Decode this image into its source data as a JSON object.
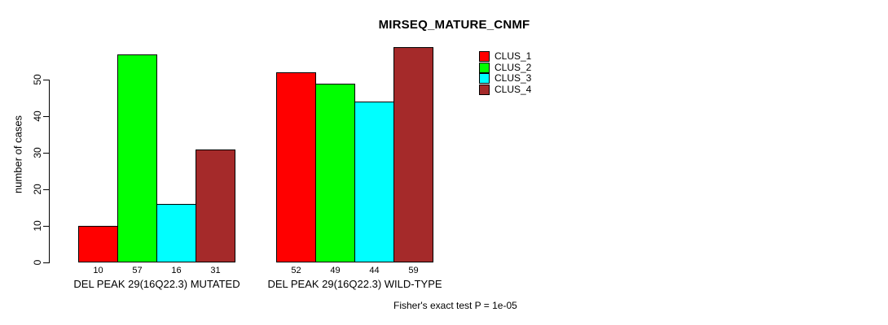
{
  "chart_data": {
    "type": "bar",
    "title": "MIRSEQ_MATURE_CNMF",
    "ylabel": "number of cases",
    "xlabel": "",
    "yticks": [
      0,
      10,
      20,
      30,
      40,
      50
    ],
    "ylim": [
      0,
      59
    ],
    "grid": false,
    "legend_position": "top-right",
    "series": [
      {
        "name": "CLUS_1",
        "color": "#FF0000"
      },
      {
        "name": "CLUS_2",
        "color": "#00FF00"
      },
      {
        "name": "CLUS_3",
        "color": "#00FFFF"
      },
      {
        "name": "CLUS_4",
        "color": "#A52A2A"
      }
    ],
    "groups": [
      {
        "label": "DEL PEAK 29(16Q22.3) MUTATED",
        "values": [
          10,
          57,
          16,
          31
        ]
      },
      {
        "label": "DEL PEAK 29(16Q22.3) WILD-TYPE",
        "values": [
          52,
          49,
          44,
          59
        ]
      }
    ],
    "annotation": "Fisher's exact test P = 1e-05"
  }
}
